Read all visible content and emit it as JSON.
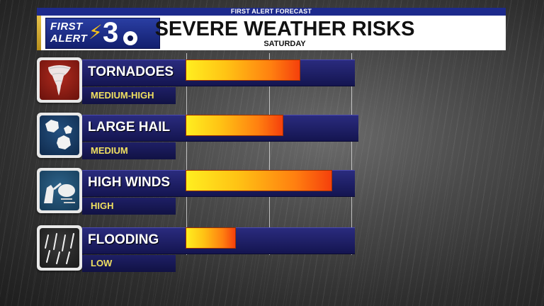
{
  "header": {
    "strip": "FIRST ALERT FORECAST",
    "title": "SEVERE WEATHER RISKS",
    "subtitle": "SATURDAY",
    "logo": {
      "line1": "FIRST",
      "line2": "ALERT",
      "channel": "3"
    }
  },
  "risk_scale_max": 100,
  "risks": [
    {
      "name": "TORNADOES",
      "level": "MEDIUM-HIGH",
      "value": 68,
      "icon": "tornado-icon",
      "icon_color": "#8a1a12"
    },
    {
      "name": "LARGE HAIL",
      "level": "MEDIUM",
      "value": 58,
      "icon": "hail-icon",
      "icon_color": "#173a63"
    },
    {
      "name": "HIGH WINDS",
      "level": "HIGH",
      "value": 87,
      "icon": "wind-icon",
      "icon_color": "#1f4a6b"
    },
    {
      "name": "FLOODING",
      "level": "LOW",
      "value": 30,
      "icon": "rain-icon",
      "icon_color": "#2b2b2b"
    }
  ]
}
